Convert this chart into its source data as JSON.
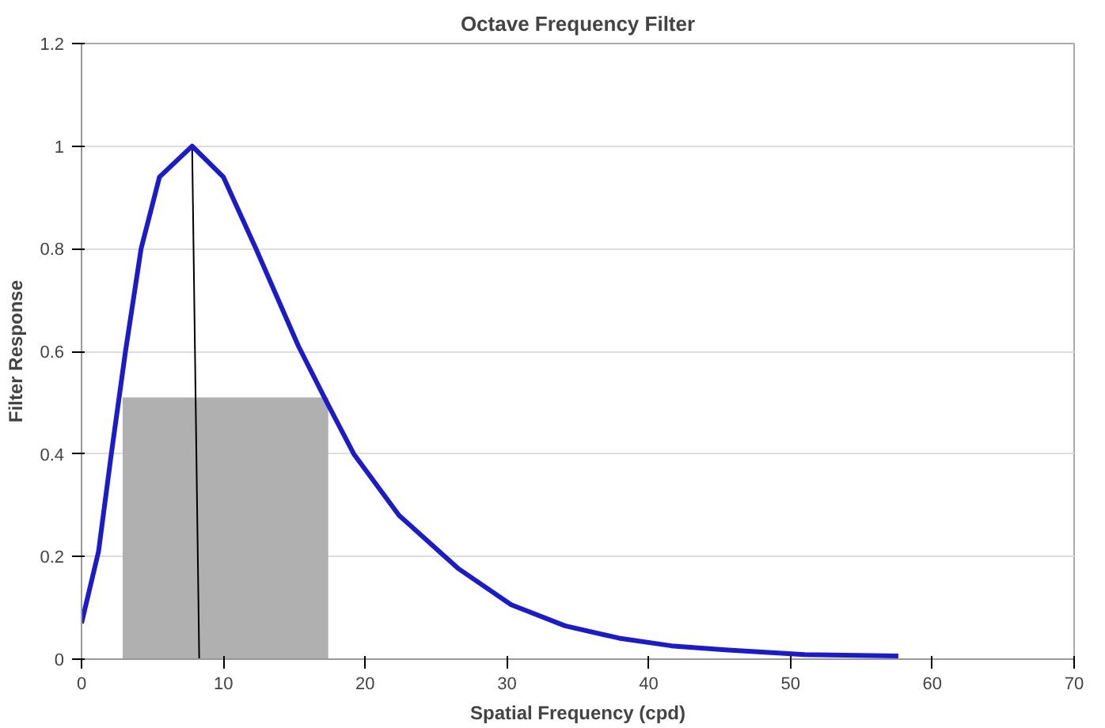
{
  "chart_data": {
    "type": "line",
    "title": "Octave Frequency Filter",
    "xlabel": "Spatial Frequency (cpd)",
    "ylabel": "Filter Response",
    "xlim": [
      0,
      70
    ],
    "xticks": [
      0,
      10,
      20,
      30,
      40,
      50,
      60,
      70
    ],
    "ylim": [
      0,
      1.2
    ],
    "yticks": [
      0,
      0.2,
      0.4,
      0.6,
      0.8,
      1,
      1.2
    ],
    "grid": "y",
    "series": [
      {
        "type": "area",
        "color": "#b0b0b0",
        "x": [
          2.9,
          17.4
        ],
        "values": [
          0.51,
          0.51
        ]
      },
      {
        "type": "line",
        "color": "#000000",
        "x": [
          7.8,
          8.3
        ],
        "values": [
          1.0,
          0
        ]
      },
      {
        "color": "#1a1ad0",
        "x": [
          0,
          1.2,
          2.1,
          3.1,
          4.2,
          5.5,
          7.8,
          10.0,
          12.3,
          15.3,
          17.2,
          19.2,
          22.4,
          26.6,
          30.3,
          34.1,
          37.9,
          41.6,
          45.4,
          51.0,
          57.6
        ],
        "values": [
          0.07,
          0.21,
          0.4,
          0.6,
          0.8,
          0.94,
          1.0,
          0.94,
          0.8,
          0.61,
          0.506,
          0.4,
          0.28,
          0.176,
          0.106,
          0.065,
          0.041,
          0.026,
          0.018,
          0.009,
          0.006
        ]
      }
    ]
  }
}
